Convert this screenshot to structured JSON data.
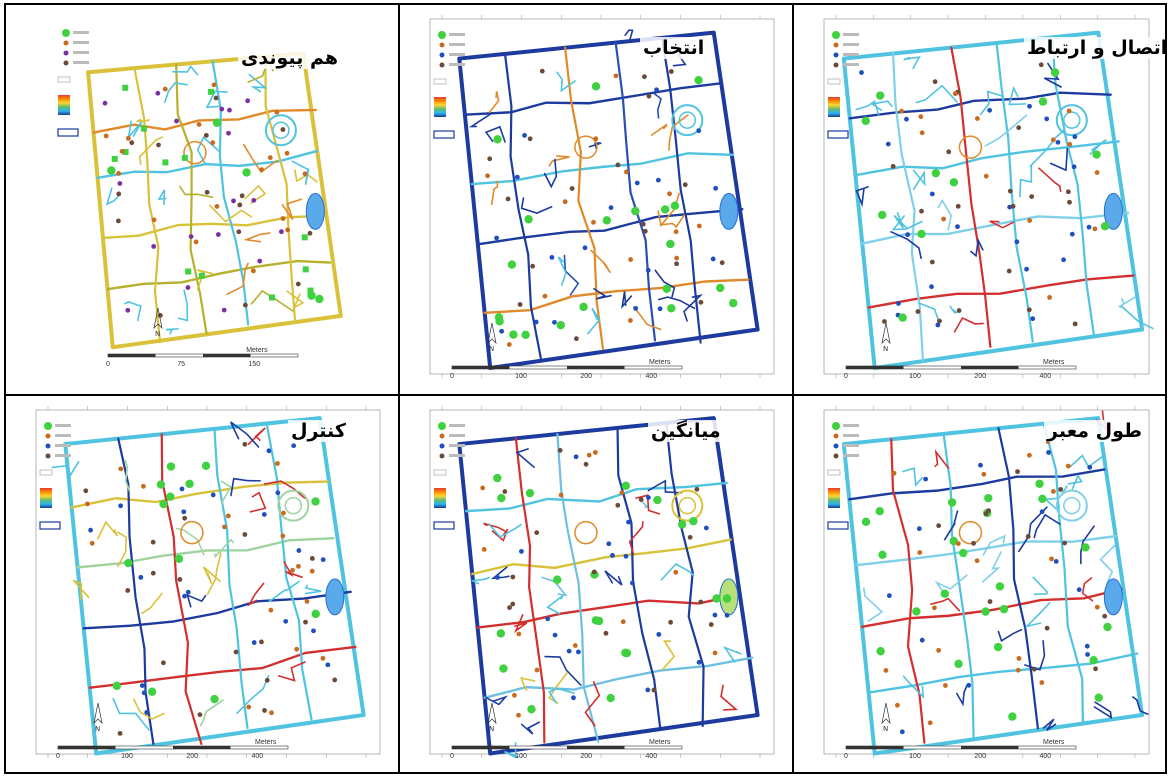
{
  "panels": [
    {
      "id": "p1",
      "title": "هم پیوندی",
      "scale_labels": [
        "0",
        "75",
        "150"
      ],
      "unit": "Meters",
      "north": "N",
      "variant": "connectivity",
      "legend_gradient": [
        "#e53935",
        "#fb8c00",
        "#fdd835",
        "#66bb6a",
        "#29b6f6",
        "#1e3a8a"
      ]
    },
    {
      "id": "p2",
      "title": "انتخاب",
      "scale_labels": [
        "0",
        "100",
        "200",
        "400"
      ],
      "unit": "Meters",
      "north": "N",
      "variant": "choice",
      "legend_gradient": [
        "#e53935",
        "#fb8c00",
        "#fdd835",
        "#66bb6a",
        "#29b6f6",
        "#1e3a8a"
      ]
    },
    {
      "id": "p3",
      "title": "اتصال و ارتباط",
      "scale_labels": [
        "0",
        "100",
        "200",
        "400"
      ],
      "unit": "Meters",
      "north": "N",
      "variant": "connection",
      "legend_gradient": [
        "#e53935",
        "#fb8c00",
        "#fdd835",
        "#66bb6a",
        "#29b6f6",
        "#1e3a8a"
      ]
    },
    {
      "id": "p4",
      "title": "کنترل",
      "scale_labels": [
        "0",
        "100",
        "200",
        "400"
      ],
      "unit": "Meters",
      "north": "N",
      "variant": "control",
      "legend_gradient": [
        "#e53935",
        "#fb8c00",
        "#fdd835",
        "#66bb6a",
        "#29b6f6",
        "#1e3a8a"
      ]
    },
    {
      "id": "p5",
      "title": "میانگین",
      "scale_labels": [
        "0",
        "100",
        "200",
        "400"
      ],
      "unit": "Meters",
      "north": "N",
      "variant": "mean",
      "legend_gradient": [
        "#e53935",
        "#fb8c00",
        "#fdd835",
        "#66bb6a",
        "#29b6f6",
        "#1e3a8a"
      ]
    },
    {
      "id": "p6",
      "title": "طول معبر",
      "scale_labels": [
        "0",
        "100",
        "200",
        "400"
      ],
      "unit": "Meters",
      "north": "N",
      "variant": "length",
      "legend_gradient": [
        "#e53935",
        "#fb8c00",
        "#fdd835",
        "#66bb6a",
        "#29b6f6",
        "#1e3a8a"
      ]
    }
  ],
  "colors": {
    "green_point": "#3fd13f",
    "orange_point": "#c96a1e",
    "blue_point": "#1f4fbf",
    "purple_point": "#7b2fa6",
    "brown_point": "#6b4a3a",
    "blue_street": "#1d3b9e",
    "cyan_street": "#4fc3e0",
    "yellow_street": "#d9c23a",
    "orange_street": "#e08a2a",
    "red_street": "#d32f2f"
  }
}
